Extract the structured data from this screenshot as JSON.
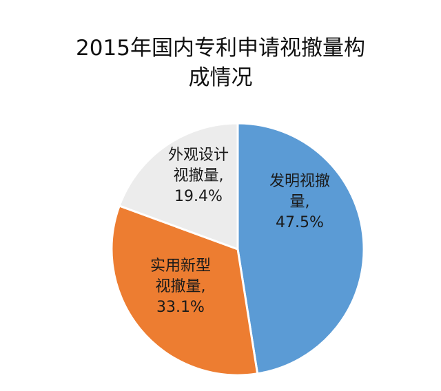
{
  "chart_data": {
    "type": "pie",
    "title_lines": [
      "2015年国内专利申请视撤量构",
      "成情况"
    ],
    "slices": [
      {
        "label_lines": [
          "发明视撤",
          "量,",
          "47.5%"
        ],
        "value": 47.5,
        "color": "#5b9bd5"
      },
      {
        "label_lines": [
          "实用新型",
          "视撤量,",
          "33.1%"
        ],
        "value": 33.1,
        "color": "#ed7d31"
      },
      {
        "label_lines": [
          "外观设计",
          "视撤量,",
          "19.4%"
        ],
        "value": 19.4,
        "color": "#ececec"
      }
    ],
    "start": "12 o'clock",
    "direction": "clockwise",
    "legend": "none"
  }
}
